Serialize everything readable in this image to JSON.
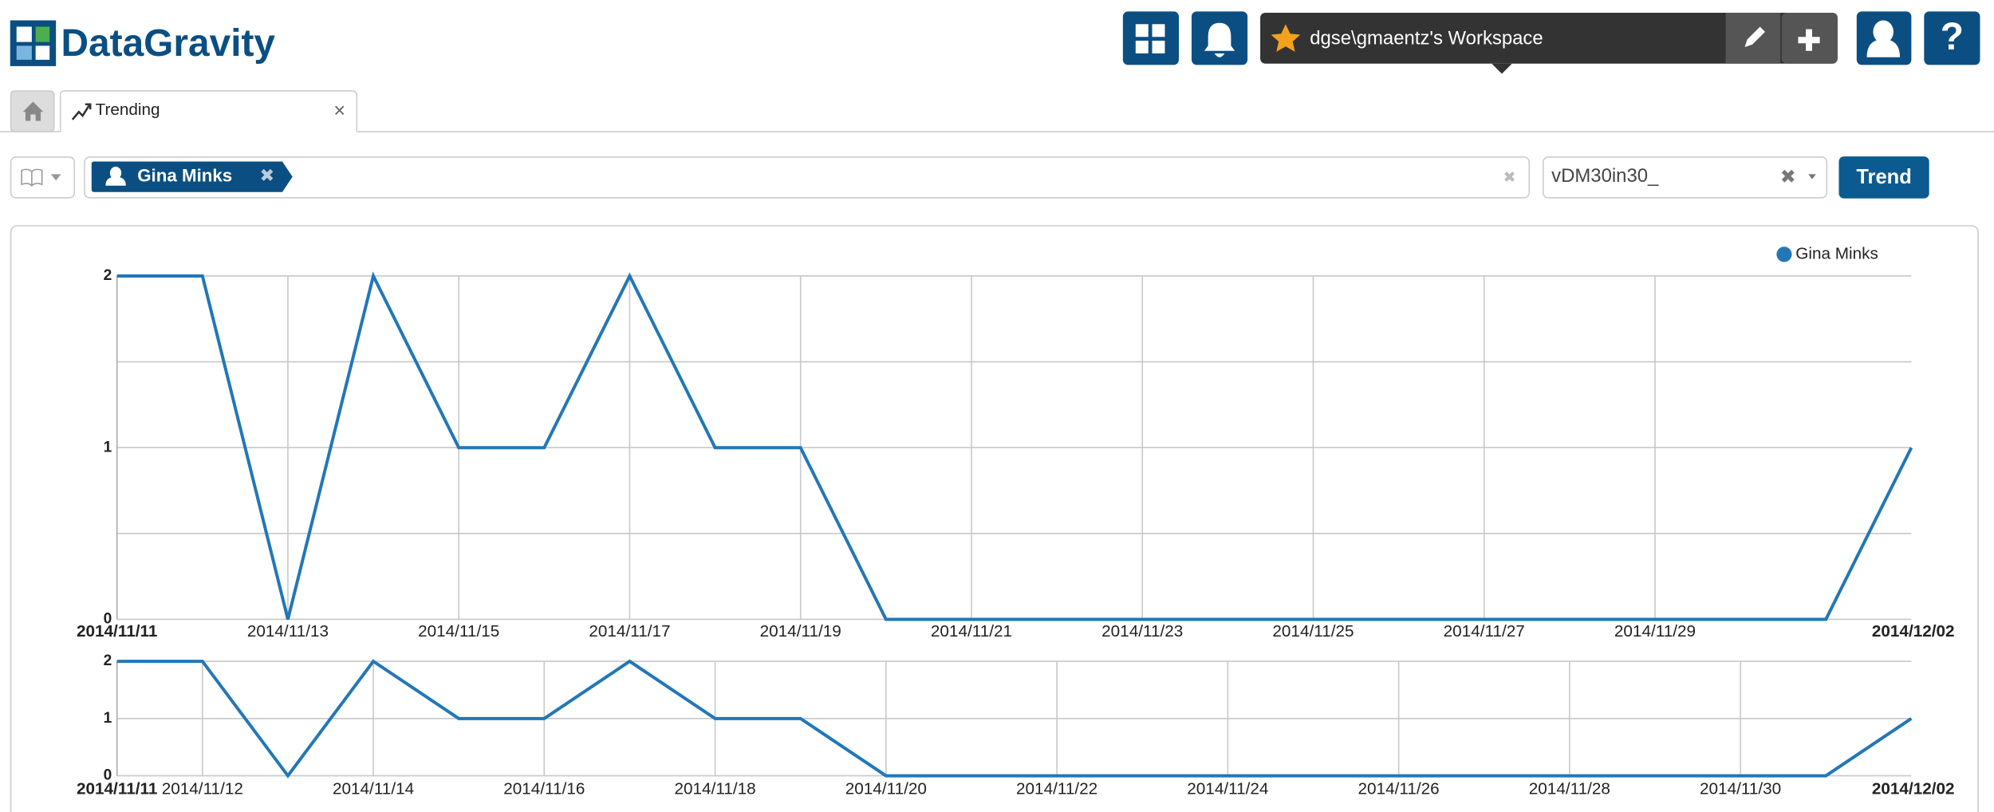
{
  "header": {
    "logo": "DataGravity",
    "workspace": "dgse\\gmaentz's Workspace"
  },
  "tabs": {
    "trending": "Trending"
  },
  "filters": {
    "chip": "Gina Minks",
    "dataset": "vDM30in30_",
    "button": "Trend"
  },
  "chart_data": [
    {
      "type": "line",
      "legend": "top-right",
      "grid": true,
      "x": [
        "2014/11/11",
        "2014/11/12",
        "2014/11/13",
        "2014/11/14",
        "2014/11/15",
        "2014/11/16",
        "2014/11/17",
        "2014/11/18",
        "2014/11/19",
        "2014/11/20",
        "2014/11/21",
        "2014/11/22",
        "2014/11/23",
        "2014/11/24",
        "2014/11/25",
        "2014/11/26",
        "2014/11/27",
        "2014/11/28",
        "2014/11/29",
        "2014/11/30",
        "2014/12/01",
        "2014/12/02"
      ],
      "series": [
        {
          "name": "Gina Minks",
          "color": "#2277b7",
          "values": [
            2,
            2,
            0,
            2,
            1,
            1,
            2,
            1,
            1,
            0,
            0,
            0,
            0,
            0,
            0,
            0,
            0,
            0,
            0,
            0,
            0,
            1
          ]
        }
      ],
      "ylim": [
        0,
        2
      ],
      "yticks": [
        0,
        {
          "value": 0.5,
          "label": null
        },
        1,
        {
          "value": 1.5,
          "label": null
        },
        2
      ],
      "xticks": [
        "2014/11/11",
        "2014/11/13",
        "2014/11/15",
        "2014/11/17",
        "2014/11/19",
        "2014/11/21",
        "2014/11/23",
        "2014/11/25",
        "2014/11/27",
        "2014/11/29",
        "2014/12/02"
      ]
    },
    {
      "type": "line",
      "grid": true,
      "x": [
        "2014/11/11",
        "2014/11/12",
        "2014/11/13",
        "2014/11/14",
        "2014/11/15",
        "2014/11/16",
        "2014/11/17",
        "2014/11/18",
        "2014/11/19",
        "2014/11/20",
        "2014/11/21",
        "2014/11/22",
        "2014/11/23",
        "2014/11/24",
        "2014/11/25",
        "2014/11/26",
        "2014/11/27",
        "2014/11/28",
        "2014/11/29",
        "2014/11/30",
        "2014/12/01",
        "2014/12/02"
      ],
      "series": [
        {
          "color": "#2277b7",
          "values": [
            2,
            2,
            0,
            2,
            1,
            1,
            2,
            1,
            1,
            0,
            0,
            0,
            0,
            0,
            0,
            0,
            0,
            0,
            0,
            0,
            0,
            1
          ]
        }
      ],
      "ylim": [
        0,
        2
      ],
      "yticks": [
        0,
        1,
        2
      ],
      "xticks": [
        "2014/11/11",
        "2014/11/12",
        "2014/11/14",
        "2014/11/16",
        "2014/11/18",
        "2014/11/20",
        "2014/11/22",
        "2014/11/24",
        "2014/11/26",
        "2014/11/28",
        "2014/11/30",
        "2014/12/02"
      ]
    }
  ]
}
